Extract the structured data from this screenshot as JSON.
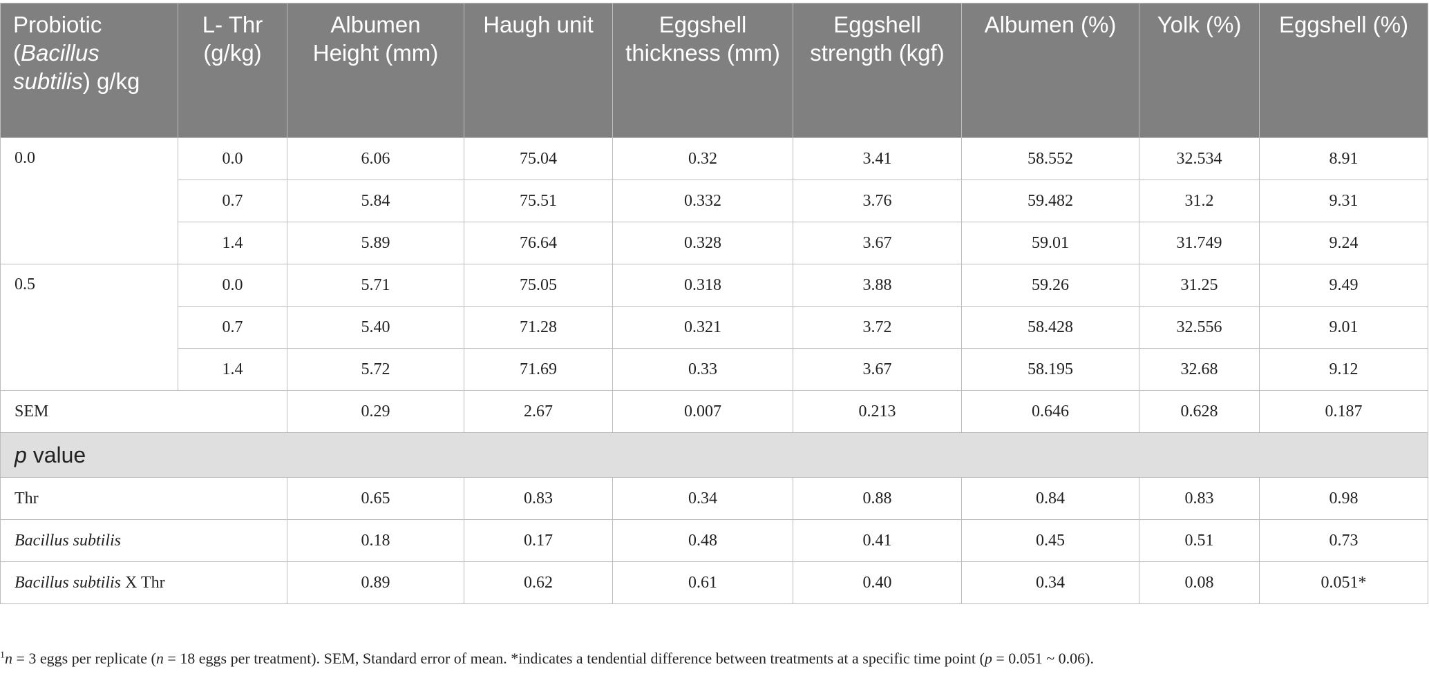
{
  "table": {
    "header": [
      [
        "Probiotic (",
        "Bacillus subtilis",
        ") g/kg"
      ],
      "L- Thr (g/kg)",
      "Albumen Height (mm)",
      "Haugh unit",
      "Eggshell thickness (mm)",
      "Eggshell strength (kgf)",
      "Albumen (%)",
      "Yolk (%)",
      "Eggshell (%)"
    ],
    "groups": [
      {
        "probiotic": "0.0",
        "rows": [
          [
            "0.0",
            "6.06",
            "75.04",
            "0.32",
            "3.41",
            "58.552",
            "32.534",
            "8.91"
          ],
          [
            "0.7",
            "5.84",
            "75.51",
            "0.332",
            "3.76",
            "59.482",
            "31.2",
            "9.31"
          ],
          [
            "1.4",
            "5.89",
            "76.64",
            "0.328",
            "3.67",
            "59.01",
            "31.749",
            "9.24"
          ]
        ]
      },
      {
        "probiotic": "0.5",
        "rows": [
          [
            "0.0",
            "5.71",
            "75.05",
            "0.318",
            "3.88",
            "59.26",
            "31.25",
            "9.49"
          ],
          [
            "0.7",
            "5.40",
            "71.28",
            "0.321",
            "3.72",
            "58.428",
            "32.556",
            "9.01"
          ],
          [
            "1.4",
            "5.72",
            "71.69",
            "0.33",
            "3.67",
            "58.195",
            "32.68",
            "9.12"
          ]
        ]
      }
    ],
    "sem": {
      "label": "SEM",
      "values": [
        "0.29",
        "2.67",
        "0.007",
        "0.213",
        "0.646",
        "0.628",
        "0.187"
      ]
    },
    "p_value": {
      "title": [
        "",
        "p",
        " value"
      ],
      "rows": [
        {
          "label": "Thr",
          "values": [
            "0.65",
            "0.83",
            "0.34",
            "0.88",
            "0.84",
            "0.83",
            "0.98"
          ]
        },
        {
          "label": [
            "",
            "Bacillus subtilis"
          ],
          "values": [
            "0.18",
            "0.17",
            "0.48",
            "0.41",
            "0.45",
            "0.51",
            "0.73"
          ]
        },
        {
          "label": [
            "",
            "Bacillus subtilis",
            " X Thr"
          ],
          "values": [
            "0.89",
            "0.62",
            "0.61",
            "0.40",
            "0.34",
            "0.08",
            "0.051*"
          ]
        }
      ]
    }
  },
  "footnote": [
    "1",
    "n",
    " = 3 eggs per replicate (",
    "n",
    " = 18 eggs per treatment). SEM, Standard error of mean. *indicates a tendential difference between treatments at a specific time point (",
    "p",
    " = 0.051 ~ 0.06)."
  ]
}
